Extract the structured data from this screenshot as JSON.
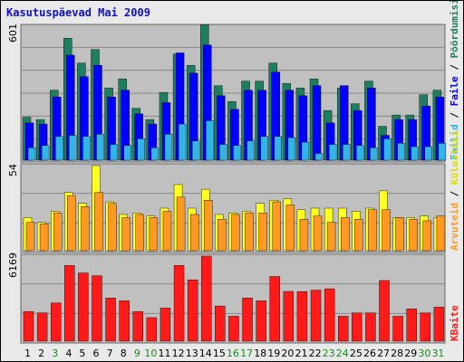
{
  "title": "Kasutuspäevad Mai 2009",
  "colors": {
    "background": "#e9e9e9",
    "panel": "#c0c0c0",
    "gridline": "#888888",
    "visits": "#1e7f60",
    "pages": "#0000ff",
    "files": "#32b4e8",
    "hits": "#ffff22",
    "sites": "#ff9922",
    "kbytes": "#ff1a1a",
    "weekday": "#000000",
    "weekend": "#1a8a1a",
    "title": "#1010c0"
  },
  "chart_data": [
    {
      "type": "bar",
      "categories": [
        "1",
        "2",
        "3",
        "4",
        "5",
        "6",
        "7",
        "8",
        "9",
        "10",
        "11",
        "12",
        "13",
        "14",
        "15",
        "16",
        "17",
        "18",
        "19",
        "20",
        "21",
        "22",
        "23",
        "24",
        "25",
        "26",
        "27",
        "28",
        "29",
        "30",
        "31"
      ],
      "weekend_days": [
        "3",
        "9",
        "10",
        "16",
        "17",
        "23",
        "24",
        "30",
        "31"
      ],
      "ymax_label": "601",
      "ylim": [
        0,
        601
      ],
      "series": [
        {
          "name": "Pöördumisi",
          "color": "#1e7f60",
          "values": [
            190,
            180,
            310,
            540,
            430,
            490,
            320,
            360,
            230,
            180,
            300,
            470,
            420,
            600,
            330,
            260,
            350,
            350,
            430,
            340,
            320,
            360,
            220,
            320,
            250,
            350,
            150,
            200,
            200,
            290,
            310
          ]
        },
        {
          "name": "Faile",
          "color": "#0000ff",
          "values": [
            165,
            160,
            280,
            465,
            370,
            420,
            280,
            310,
            205,
            160,
            255,
            475,
            385,
            510,
            285,
            225,
            310,
            310,
            390,
            310,
            285,
            330,
            165,
            330,
            220,
            320,
            110,
            180,
            180,
            240,
            280
          ]
        },
        {
          "name": "Failid",
          "color": "#32b4e8",
          "values": [
            55,
            65,
            105,
            110,
            105,
            115,
            70,
            65,
            95,
            55,
            115,
            160,
            85,
            175,
            70,
            65,
            85,
            105,
            105,
            100,
            80,
            30,
            70,
            70,
            65,
            55,
            95,
            75,
            60,
            60,
            75
          ]
        }
      ],
      "axis_label": "Pöördumisi / Faile / Failid"
    },
    {
      "type": "bar",
      "categories": [
        "1",
        "2",
        "3",
        "4",
        "5",
        "6",
        "7",
        "8",
        "9",
        "10",
        "11",
        "12",
        "13",
        "14",
        "15",
        "16",
        "17",
        "18",
        "19",
        "20",
        "21",
        "22",
        "23",
        "24",
        "25",
        "26",
        "27",
        "28",
        "29",
        "30",
        "31"
      ],
      "ymax_label": "54",
      "ylim": [
        0,
        54
      ],
      "series": [
        {
          "name": "Külastusi",
          "color": "#ffff22",
          "values": [
            21,
            18,
            25,
            37,
            30,
            54,
            31,
            23,
            24,
            22,
            27,
            42,
            27,
            39,
            23,
            24,
            25,
            30,
            32,
            33,
            26,
            27,
            27,
            27,
            25,
            27,
            38,
            21,
            21,
            22,
            21
          ]
        },
        {
          "name": "Arvuteid",
          "color": "#ff9922",
          "values": [
            18,
            17,
            24,
            35,
            28,
            37,
            30,
            21,
            23,
            21,
            25,
            34,
            23,
            32,
            20,
            23,
            24,
            24,
            31,
            29,
            20,
            22,
            18,
            21,
            20,
            26,
            26,
            21,
            20,
            19,
            22
          ]
        }
      ],
      "axis_label": "Külastusi / Arvuteid"
    },
    {
      "type": "bar",
      "categories": [
        "1",
        "2",
        "3",
        "4",
        "5",
        "6",
        "7",
        "8",
        "9",
        "10",
        "11",
        "12",
        "13",
        "14",
        "15",
        "16",
        "17",
        "18",
        "19",
        "20",
        "21",
        "22",
        "23",
        "24",
        "25",
        "26",
        "27",
        "28",
        "29",
        "30",
        "31"
      ],
      "ymax_label": "6169",
      "ylim": [
        0,
        6169
      ],
      "series": [
        {
          "name": "KBaite",
          "color": "#ff1a1a",
          "values": [
            2150,
            2050,
            2770,
            5490,
            4950,
            4750,
            3130,
            2930,
            2150,
            1710,
            2400,
            5490,
            4450,
            6169,
            2550,
            1810,
            3130,
            2930,
            4690,
            3610,
            3600,
            3700,
            3800,
            1810,
            2050,
            2050,
            4400,
            1810,
            2340,
            2050,
            2470
          ]
        }
      ],
      "axis_label": "KBaite"
    }
  ]
}
